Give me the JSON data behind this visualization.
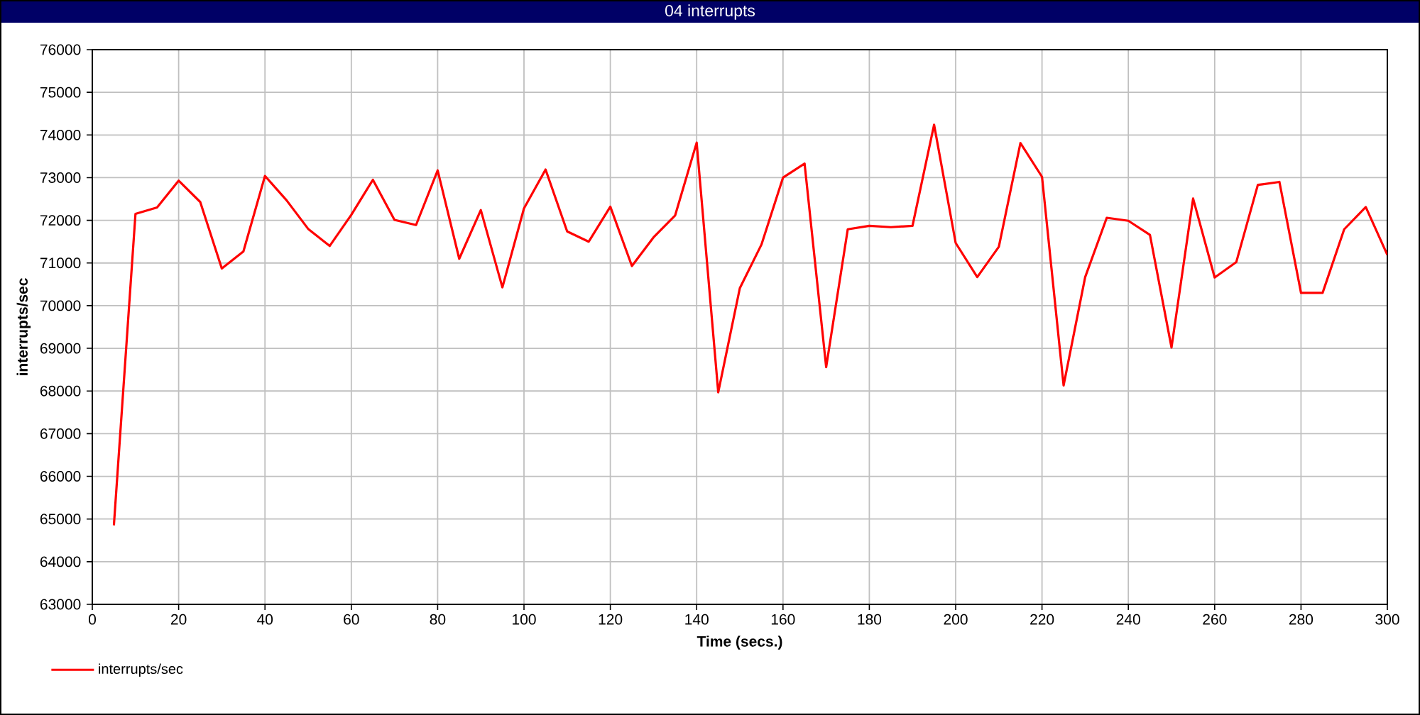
{
  "chart_data": {
    "type": "line",
    "title": "04 interrupts",
    "xlabel": "Time (secs.)",
    "ylabel": "interrupts/sec",
    "x": [
      5,
      10,
      15,
      20,
      25,
      30,
      35,
      40,
      45,
      50,
      55,
      60,
      65,
      70,
      75,
      80,
      85,
      90,
      95,
      100,
      105,
      110,
      115,
      120,
      125,
      130,
      135,
      140,
      145,
      150,
      155,
      160,
      165,
      170,
      175,
      180,
      185,
      190,
      195,
      200,
      205,
      210,
      215,
      220,
      225,
      230,
      235,
      240,
      245,
      250,
      255,
      260,
      265,
      270,
      275,
      280,
      285,
      290,
      295,
      300
    ],
    "series": [
      {
        "name": "interrupts/sec",
        "color": "#ff0000",
        "values": [
          64850,
          72150,
          72300,
          72930,
          72430,
          70870,
          71270,
          73040,
          72470,
          71800,
          71400,
          72130,
          72950,
          72010,
          71890,
          73170,
          71100,
          72240,
          70430,
          72280,
          73190,
          71740,
          71500,
          72320,
          70930,
          71600,
          72110,
          73820,
          67970,
          70410,
          71430,
          73000,
          73330,
          68560,
          71790,
          71870,
          71840,
          71870,
          74240,
          71470,
          70670,
          71380,
          73810,
          73020,
          68130,
          70670,
          72060,
          71990,
          71660,
          69020,
          72510,
          70660,
          71020,
          72830,
          72900,
          70300,
          70300,
          71790,
          72310,
          71190
        ]
      }
    ],
    "xlim": [
      0,
      300
    ],
    "ylim": [
      63000,
      76000
    ],
    "xticks": [
      0,
      20,
      40,
      60,
      80,
      100,
      120,
      140,
      160,
      180,
      200,
      220,
      240,
      260,
      280,
      300
    ],
    "yticks": [
      63000,
      64000,
      65000,
      66000,
      67000,
      68000,
      69000,
      70000,
      71000,
      72000,
      73000,
      74000,
      75000,
      76000
    ],
    "grid": true,
    "legend": "bottom left",
    "marker": "none",
    "line_style": "solid"
  }
}
